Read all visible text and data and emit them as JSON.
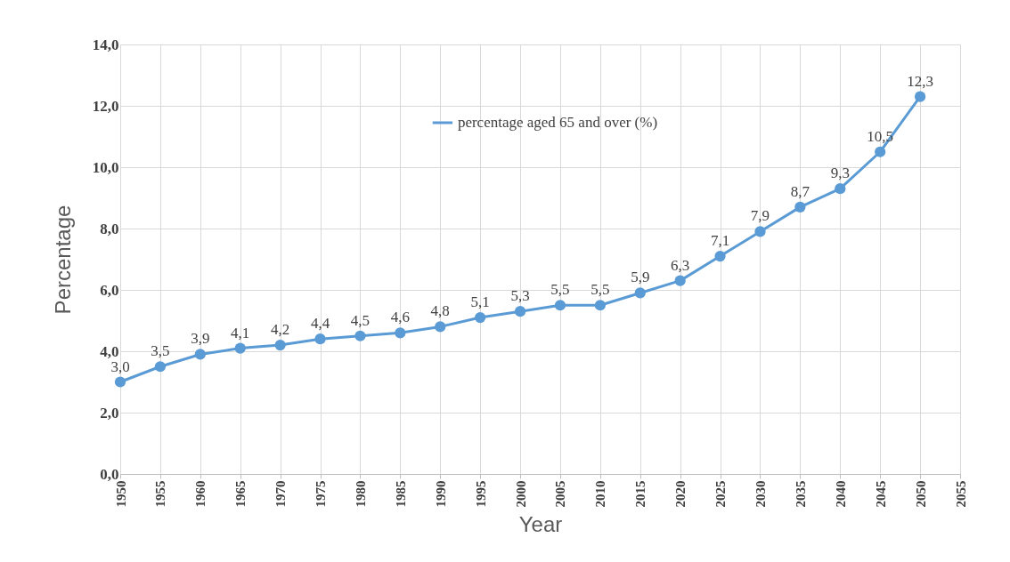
{
  "chart_data": {
    "type": "line",
    "xlabel": "Year",
    "ylabel": "Percentage",
    "x": [
      1950,
      1955,
      1960,
      1965,
      1970,
      1975,
      1980,
      1985,
      1990,
      1995,
      2000,
      2005,
      2010,
      2015,
      2020,
      2025,
      2030,
      2035,
      2040,
      2045,
      2050
    ],
    "series": [
      {
        "name": "percentage aged 65 and over (%)",
        "color": "#5b9bd5",
        "values": [
          3.0,
          3.5,
          3.9,
          4.1,
          4.2,
          4.4,
          4.5,
          4.6,
          4.8,
          5.1,
          5.3,
          5.5,
          5.5,
          5.9,
          6.3,
          7.1,
          7.9,
          8.7,
          9.3,
          10.5,
          12.3
        ],
        "value_labels": [
          "3,0",
          "3,5",
          "3,9",
          "4,1",
          "4,2",
          "4,4",
          "4,5",
          "4,6",
          "4,8",
          "5,1",
          "5,3",
          "5,5",
          "5,5",
          "5,9",
          "6,3",
          "7,1",
          "7,9",
          "8,7",
          "9,3",
          "10,5",
          "12,3"
        ]
      }
    ],
    "xlim": [
      1950,
      2055
    ],
    "xticks": [
      1950,
      1955,
      1960,
      1965,
      1970,
      1975,
      1980,
      1985,
      1990,
      1995,
      2000,
      2005,
      2010,
      2015,
      2020,
      2025,
      2030,
      2035,
      2040,
      2045,
      2050,
      2055
    ],
    "ylim": [
      0,
      14
    ],
    "yticks": [
      {
        "value": 0,
        "label": "0,0"
      },
      {
        "value": 2,
        "label": "2,0"
      },
      {
        "value": 4,
        "label": "4,0"
      },
      {
        "value": 6,
        "label": "6,0"
      },
      {
        "value": 8,
        "label": "8,0"
      },
      {
        "value": 10,
        "label": "10,0"
      },
      {
        "value": 12,
        "label": "12,0"
      },
      {
        "value": 14,
        "label": "14,0"
      }
    ],
    "grid": true,
    "legend": "top",
    "marker": "circle",
    "line_style": "solid"
  }
}
